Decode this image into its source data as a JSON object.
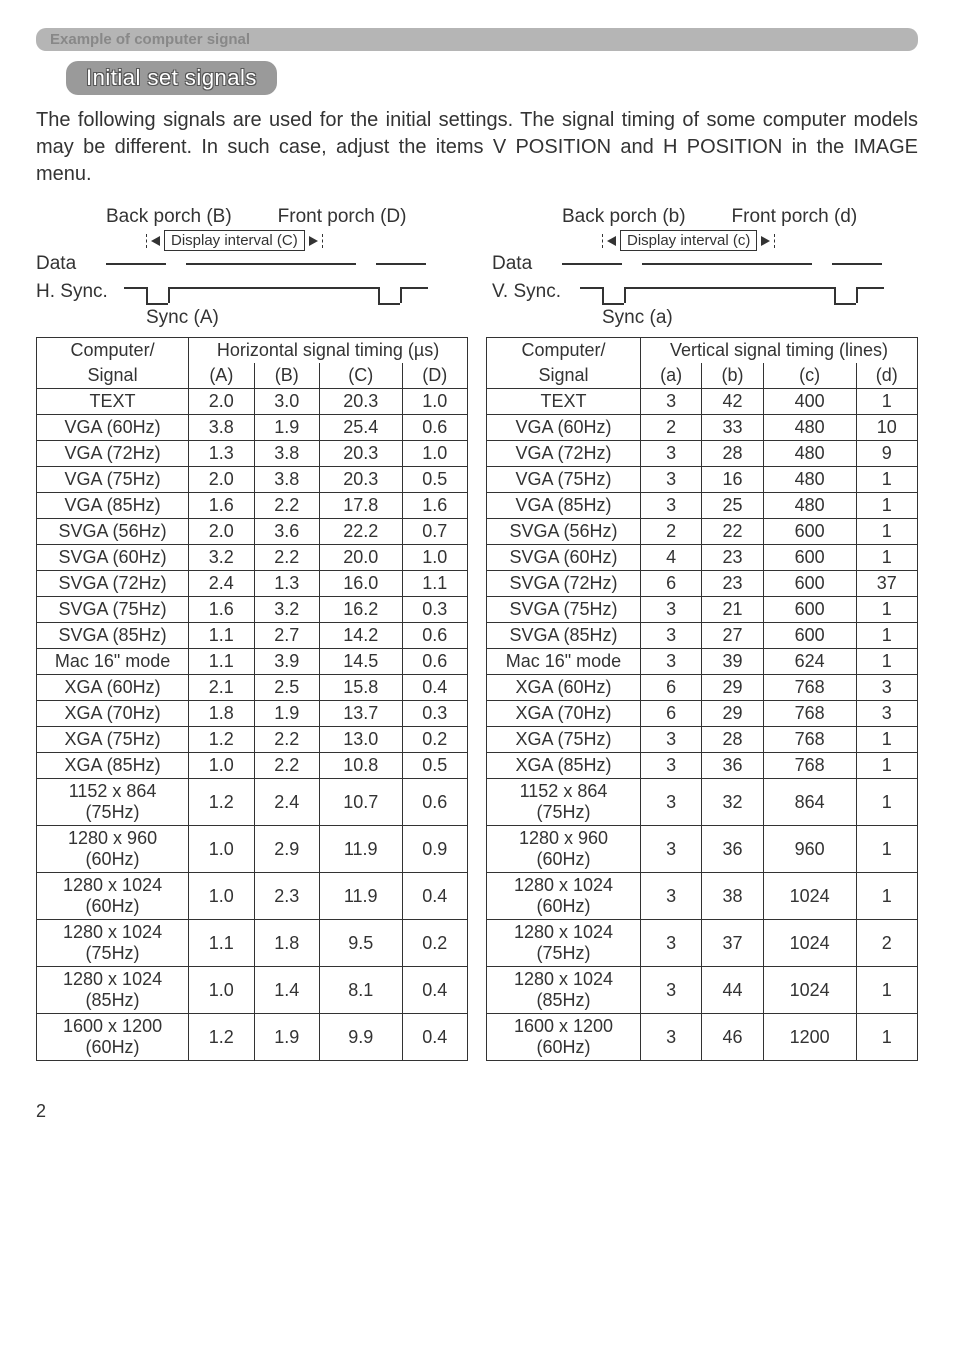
{
  "section_bar": "Example of computer signal",
  "pill_title": "Initial set signals",
  "intro": "The following signals are used for the initial settings. The signal timing of some computer models may be different. In such case, adjust the items V POSITION and H POSITION in the IMAGE menu.",
  "diagram_h": {
    "back_porch": "Back porch (B)",
    "front_porch": "Front porch (D)",
    "display_interval": "Display interval (C)",
    "data": "Data",
    "sync_line": "H. Sync.",
    "sync_bottom": "Sync (A)"
  },
  "diagram_v": {
    "back_porch": "Back porch (b)",
    "front_porch": "Front porch (d)",
    "display_interval": "Display interval (c)",
    "data": "Data",
    "sync_line": "V. Sync.",
    "sync_bottom": "Sync (a)"
  },
  "table_h": {
    "col_signal_top": "Computer/",
    "col_signal_bot": "Signal",
    "col_timing_header": "Horizontal signal timing (µs)",
    "cols": [
      "(A)",
      "(B)",
      "(C)",
      "(D)"
    ],
    "rows": [
      [
        "TEXT",
        "2.0",
        "3.0",
        "20.3",
        "1.0"
      ],
      [
        "VGA (60Hz)",
        "3.8",
        "1.9",
        "25.4",
        "0.6"
      ],
      [
        "VGA (72Hz)",
        "1.3",
        "3.8",
        "20.3",
        "1.0"
      ],
      [
        "VGA (75Hz)",
        "2.0",
        "3.8",
        "20.3",
        "0.5"
      ],
      [
        "VGA (85Hz)",
        "1.6",
        "2.2",
        "17.8",
        "1.6"
      ],
      [
        "SVGA (56Hz)",
        "2.0",
        "3.6",
        "22.2",
        "0.7"
      ],
      [
        "SVGA (60Hz)",
        "3.2",
        "2.2",
        "20.0",
        "1.0"
      ],
      [
        "SVGA (72Hz)",
        "2.4",
        "1.3",
        "16.0",
        "1.1"
      ],
      [
        "SVGA (75Hz)",
        "1.6",
        "3.2",
        "16.2",
        "0.3"
      ],
      [
        "SVGA (85Hz)",
        "1.1",
        "2.7",
        "14.2",
        "0.6"
      ],
      [
        "Mac 16\" mode",
        "1.1",
        "3.9",
        "14.5",
        "0.6"
      ],
      [
        "XGA (60Hz)",
        "2.1",
        "2.5",
        "15.8",
        "0.4"
      ],
      [
        "XGA (70Hz)",
        "1.8",
        "1.9",
        "13.7",
        "0.3"
      ],
      [
        "XGA (75Hz)",
        "1.2",
        "2.2",
        "13.0",
        "0.2"
      ],
      [
        "XGA (85Hz)",
        "1.0",
        "2.2",
        "10.8",
        "0.5"
      ],
      [
        "1152 x 864\n(75Hz)",
        "1.2",
        "2.4",
        "10.7",
        "0.6"
      ],
      [
        "1280 x 960\n(60Hz)",
        "1.0",
        "2.9",
        "11.9",
        "0.9"
      ],
      [
        "1280 x 1024\n(60Hz)",
        "1.0",
        "2.3",
        "11.9",
        "0.4"
      ],
      [
        "1280 x 1024\n(75Hz)",
        "1.1",
        "1.8",
        "9.5",
        "0.2"
      ],
      [
        "1280 x 1024\n(85Hz)",
        "1.0",
        "1.4",
        "8.1",
        "0.4"
      ],
      [
        "1600 x 1200\n(60Hz)",
        "1.2",
        "1.9",
        "9.9",
        "0.4"
      ]
    ]
  },
  "table_v": {
    "col_signal_top": "Computer/",
    "col_signal_bot": "Signal",
    "col_timing_header": "Vertical signal timing (lines)",
    "cols": [
      "(a)",
      "(b)",
      "(c)",
      "(d)"
    ],
    "rows": [
      [
        "TEXT",
        "3",
        "42",
        "400",
        "1"
      ],
      [
        "VGA (60Hz)",
        "2",
        "33",
        "480",
        "10"
      ],
      [
        "VGA (72Hz)",
        "3",
        "28",
        "480",
        "9"
      ],
      [
        "VGA (75Hz)",
        "3",
        "16",
        "480",
        "1"
      ],
      [
        "VGA (85Hz)",
        "3",
        "25",
        "480",
        "1"
      ],
      [
        "SVGA (56Hz)",
        "2",
        "22",
        "600",
        "1"
      ],
      [
        "SVGA (60Hz)",
        "4",
        "23",
        "600",
        "1"
      ],
      [
        "SVGA (72Hz)",
        "6",
        "23",
        "600",
        "37"
      ],
      [
        "SVGA (75Hz)",
        "3",
        "21",
        "600",
        "1"
      ],
      [
        "SVGA (85Hz)",
        "3",
        "27",
        "600",
        "1"
      ],
      [
        "Mac 16\" mode",
        "3",
        "39",
        "624",
        "1"
      ],
      [
        "XGA (60Hz)",
        "6",
        "29",
        "768",
        "3"
      ],
      [
        "XGA (70Hz)",
        "6",
        "29",
        "768",
        "3"
      ],
      [
        "XGA (75Hz)",
        "3",
        "28",
        "768",
        "1"
      ],
      [
        "XGA (85Hz)",
        "3",
        "36",
        "768",
        "1"
      ],
      [
        "1152 x 864\n(75Hz)",
        "3",
        "32",
        "864",
        "1"
      ],
      [
        "1280 x 960\n(60Hz)",
        "3",
        "36",
        "960",
        "1"
      ],
      [
        "1280 x 1024\n(60Hz)",
        "3",
        "38",
        "1024",
        "1"
      ],
      [
        "1280 x 1024\n(75Hz)",
        "3",
        "37",
        "1024",
        "2"
      ],
      [
        "1280 x 1024\n(85Hz)",
        "3",
        "44",
        "1024",
        "1"
      ],
      [
        "1600 x 1200\n(60Hz)",
        "3",
        "46",
        "1200",
        "1"
      ]
    ]
  },
  "page_number": "2"
}
